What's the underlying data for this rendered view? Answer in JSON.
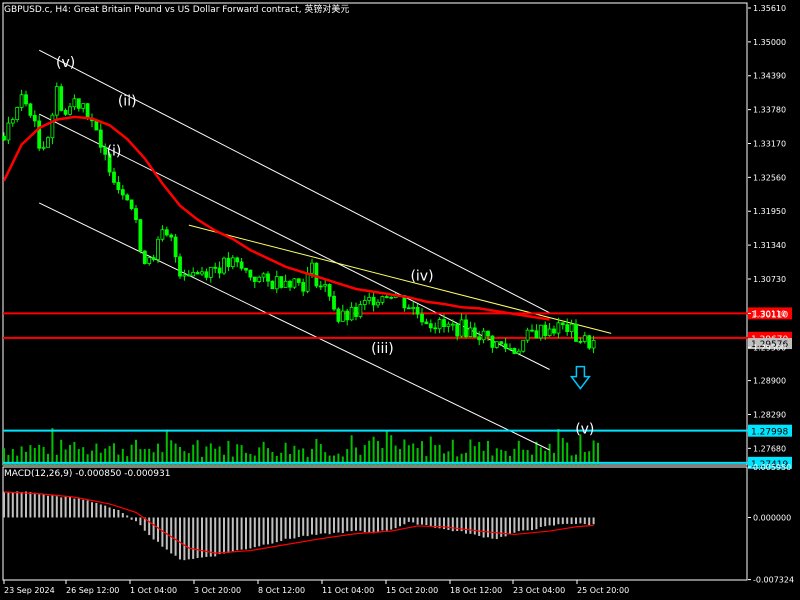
{
  "title": "GBPUSD.c, H4:  Great Britain Pound vs US Dollar Forward contract, 英镑对美元",
  "macd_title": "MACD(12,26,9) -0.000850 -0.000931",
  "colors": {
    "background": "#000000",
    "candle": "#00ff00",
    "ma": "#ff0000",
    "channel": "#ffffff",
    "trendline": "#ffff66",
    "resistance": "#ff0000",
    "support": "#00e5ff",
    "volume": "#00c000",
    "hist": "#c0c0c0",
    "signal": "#ff0000",
    "arrow": "#00c8ff"
  },
  "chart_data": [
    {
      "type": "candlestick",
      "ylim": [
        1.2738,
        1.357
      ],
      "y_ticks": [
        "1.35610",
        "1.35000",
        "1.34390",
        "1.33780",
        "1.33170",
        "1.32560",
        "1.31950",
        "1.31340",
        "1.30730",
        "1.30110",
        "1.29500",
        "1.28900",
        "1.28290",
        "1.27680"
      ],
      "x_labels": [
        "23 Sep 2024",
        "26 Sep 12:00",
        "1 Oct 04:00",
        "3 Oct 20:00",
        "8 Oct 12:00",
        "11 Oct 04:00",
        "15 Oct 20:00",
        "18 Oct 12:00",
        "23 Oct 04:00",
        "25 Oct 20:00"
      ],
      "close_path": [
        [
          0,
          1.333
        ],
        [
          2,
          1.3365
        ],
        [
          4,
          1.3395
        ],
        [
          6,
          1.338
        ],
        [
          8,
          1.331
        ],
        [
          10,
          1.3335
        ],
        [
          12,
          1.341
        ],
        [
          14,
          1.337
        ],
        [
          16,
          1.3395
        ],
        [
          18,
          1.339
        ],
        [
          20,
          1.336
        ],
        [
          22,
          1.33
        ],
        [
          24,
          1.328
        ],
        [
          26,
          1.324
        ],
        [
          28,
          1.323
        ],
        [
          30,
          1.318
        ],
        [
          31,
          1.311
        ],
        [
          34,
          1.312
        ],
        [
          36,
          1.315
        ],
        [
          38,
          1.314
        ],
        [
          40,
          1.309
        ],
        [
          44,
          1.3085
        ],
        [
          48,
          1.3095
        ],
        [
          52,
          1.31
        ],
        [
          56,
          1.308
        ],
        [
          60,
          1.3065
        ],
        [
          64,
          1.3075
        ],
        [
          68,
          1.3065
        ],
        [
          70,
          1.309
        ],
        [
          72,
          1.306
        ],
        [
          74,
          1.305
        ],
        [
          76,
          1.3
        ],
        [
          80,
          1.301
        ],
        [
          84,
          1.304
        ],
        [
          88,
          1.305
        ],
        [
          92,
          1.3025
        ],
        [
          96,
          1.3
        ],
        [
          100,
          1.2985
        ],
        [
          104,
          1.2985
        ],
        [
          108,
          1.2975
        ],
        [
          112,
          1.2955
        ],
        [
          116,
          1.2945
        ],
        [
          120,
          1.2975
        ],
        [
          124,
          1.2985
        ],
        [
          128,
          1.2985
        ],
        [
          130,
          1.297
        ],
        [
          132,
          1.296
        ],
        [
          134,
          1.2958
        ]
      ],
      "ma_path": [
        [
          0,
          1.325
        ],
        [
          4,
          1.3315
        ],
        [
          8,
          1.3345
        ],
        [
          12,
          1.336
        ],
        [
          16,
          1.3365
        ],
        [
          20,
          1.3362
        ],
        [
          24,
          1.335
        ],
        [
          28,
          1.3325
        ],
        [
          32,
          1.329
        ],
        [
          36,
          1.3245
        ],
        [
          40,
          1.3205
        ],
        [
          44,
          1.318
        ],
        [
          48,
          1.316
        ],
        [
          52,
          1.3145
        ],
        [
          56,
          1.3125
        ],
        [
          60,
          1.311
        ],
        [
          64,
          1.3095
        ],
        [
          68,
          1.3085
        ],
        [
          72,
          1.3075
        ],
        [
          76,
          1.3065
        ],
        [
          80,
          1.3055
        ],
        [
          84,
          1.305
        ],
        [
          88,
          1.3045
        ],
        [
          92,
          1.304
        ],
        [
          96,
          1.3032
        ],
        [
          100,
          1.3028
        ],
        [
          104,
          1.3022
        ],
        [
          108,
          1.302
        ],
        [
          112,
          1.3015
        ],
        [
          116,
          1.301
        ],
        [
          120,
          1.3005
        ],
        [
          124,
          1.3
        ]
      ],
      "channel_lines": [
        [
          [
            8,
            1.3485
          ],
          [
            124,
            1.3012
          ]
        ],
        [
          [
            8,
            1.337
          ],
          [
            124,
            1.291
          ]
        ],
        [
          [
            8,
            1.321
          ],
          [
            124,
            1.2765
          ]
        ]
      ],
      "trendline": [
        [
          42,
          1.317
        ],
        [
          138,
          1.2975
        ]
      ],
      "horizontal_levels": [
        {
          "label": "1.30110",
          "value": 1.3011,
          "kind": "resistance"
        },
        {
          "label": "1.29670",
          "value": 1.2967,
          "kind": "resistance"
        },
        {
          "label": "1.27998",
          "value": 1.27998,
          "kind": "support"
        },
        {
          "label": "1.27419",
          "value": 1.27419,
          "kind": "support"
        }
      ],
      "current_price": "1.29576",
      "wave_labels": [
        {
          "text": "(v)",
          "x": 14,
          "y": 1.3455
        },
        {
          "text": "(ii)",
          "x": 28,
          "y": 1.3385
        },
        {
          "text": "(i)",
          "x": 25,
          "y": 1.3295
        },
        {
          "text": "(iv)",
          "x": 95,
          "y": 1.307
        },
        {
          "text": "(iii)",
          "x": 86,
          "y": 1.294
        },
        {
          "text": "(v)",
          "x": 132,
          "y": 1.2795
        }
      ],
      "down_arrow": {
        "x": 131,
        "y": 1.289
      }
    },
    {
      "type": "histogram",
      "name": "MACD(12,26,9)",
      "ylim": [
        -0.00737,
        0.00595
      ],
      "y_ticks": [
        "0.005950",
        "0.000000",
        "-0.007324"
      ],
      "hist_path": [
        [
          0,
          0.003
        ],
        [
          6,
          0.003
        ],
        [
          10,
          0.0026
        ],
        [
          14,
          0.0024
        ],
        [
          18,
          0.0021
        ],
        [
          22,
          0.0016
        ],
        [
          26,
          0.0008
        ],
        [
          30,
          -0.0005
        ],
        [
          34,
          -0.0025
        ],
        [
          38,
          -0.0042
        ],
        [
          40,
          -0.005
        ],
        [
          44,
          -0.0048
        ],
        [
          48,
          -0.0045
        ],
        [
          52,
          -0.004
        ],
        [
          56,
          -0.0036
        ],
        [
          60,
          -0.0031
        ],
        [
          64,
          -0.0026
        ],
        [
          68,
          -0.0022
        ],
        [
          72,
          -0.002
        ],
        [
          76,
          -0.0018
        ],
        [
          80,
          -0.0016
        ],
        [
          84,
          -0.0018
        ],
        [
          88,
          -0.0014
        ],
        [
          92,
          -0.0006
        ],
        [
          96,
          -0.0009
        ],
        [
          100,
          -0.0014
        ],
        [
          104,
          -0.0017
        ],
        [
          108,
          -0.0022
        ],
        [
          112,
          -0.0025
        ],
        [
          116,
          -0.0018
        ],
        [
          120,
          -0.0014
        ],
        [
          124,
          -0.001
        ],
        [
          128,
          -0.0007
        ],
        [
          132,
          -0.0008
        ],
        [
          134,
          -0.00085
        ]
      ],
      "signal_path": [
        [
          0,
          0.003
        ],
        [
          8,
          0.0028
        ],
        [
          16,
          0.0024
        ],
        [
          24,
          0.0016
        ],
        [
          30,
          0.0006
        ],
        [
          36,
          -0.0016
        ],
        [
          42,
          -0.0036
        ],
        [
          48,
          -0.0042
        ],
        [
          56,
          -0.0039
        ],
        [
          64,
          -0.0032
        ],
        [
          72,
          -0.0025
        ],
        [
          80,
          -0.0019
        ],
        [
          88,
          -0.0016
        ],
        [
          94,
          -0.001
        ],
        [
          100,
          -0.0011
        ],
        [
          108,
          -0.0016
        ],
        [
          116,
          -0.002
        ],
        [
          124,
          -0.0016
        ],
        [
          130,
          -0.0011
        ],
        [
          134,
          -0.00093
        ]
      ]
    }
  ]
}
